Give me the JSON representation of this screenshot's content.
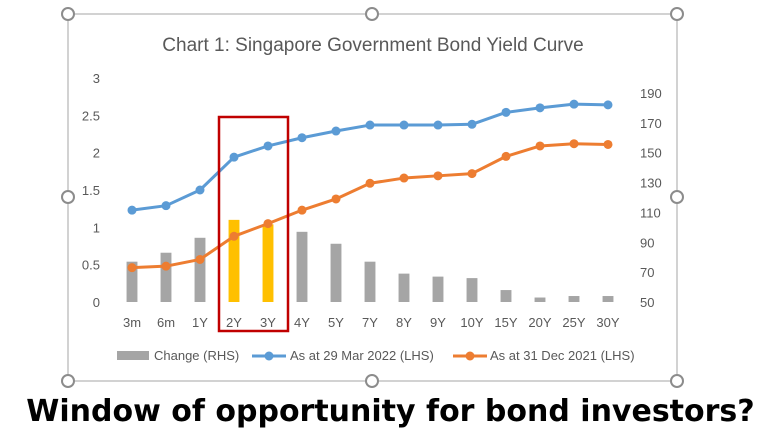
{
  "caption": "Window of opportunity for bond investors?",
  "colors": {
    "bar": "#a5a5a5",
    "bar_highlight": "#ffc000",
    "series_mar2022": "#5b9bd5",
    "series_dec2021": "#ed7d31",
    "highlight_box": "#c00000",
    "frame": "#a6a6a6",
    "text": "#595959"
  },
  "chart_data": {
    "type": "bar+line",
    "title": "Chart 1: Singapore Government Bond Yield Curve",
    "categories": [
      "3m",
      "6m",
      "1Y",
      "2Y",
      "3Y",
      "4Y",
      "5Y",
      "7Y",
      "8Y",
      "9Y",
      "10Y",
      "15Y",
      "20Y",
      "25Y",
      "30Y"
    ],
    "yaxis_left": {
      "ylim": [
        0,
        3
      ],
      "ticks": [
        "0",
        "0.5",
        "1",
        "1.5",
        "2",
        "2.5",
        "3"
      ]
    },
    "yaxis_right": {
      "ylim": [
        50,
        200
      ],
      "ticks": [
        "50",
        "70",
        "90",
        "110",
        "130",
        "150",
        "170",
        "190"
      ]
    },
    "highlighted_categories": [
      "2Y",
      "3Y"
    ],
    "series": [
      {
        "name": "Change (RHS)",
        "type": "bar",
        "axis": "right",
        "values": [
          77,
          83,
          93,
          105,
          102,
          97,
          89,
          77,
          69,
          67,
          66,
          58,
          53,
          54,
          54
        ]
      },
      {
        "name": "As at 29 Mar 2022 (LHS)",
        "type": "line",
        "axis": "left",
        "values": [
          1.23,
          1.29,
          1.5,
          1.94,
          2.09,
          2.2,
          2.29,
          2.37,
          2.37,
          2.37,
          2.38,
          2.54,
          2.6,
          2.65,
          2.64
        ]
      },
      {
        "name": "As at 31 Dec 2021 (LHS)",
        "type": "line",
        "axis": "left",
        "values": [
          0.46,
          0.48,
          0.57,
          0.88,
          1.05,
          1.23,
          1.38,
          1.59,
          1.66,
          1.69,
          1.72,
          1.95,
          2.09,
          2.12,
          2.11
        ]
      }
    ],
    "legend": {
      "placement": "bottom"
    }
  }
}
